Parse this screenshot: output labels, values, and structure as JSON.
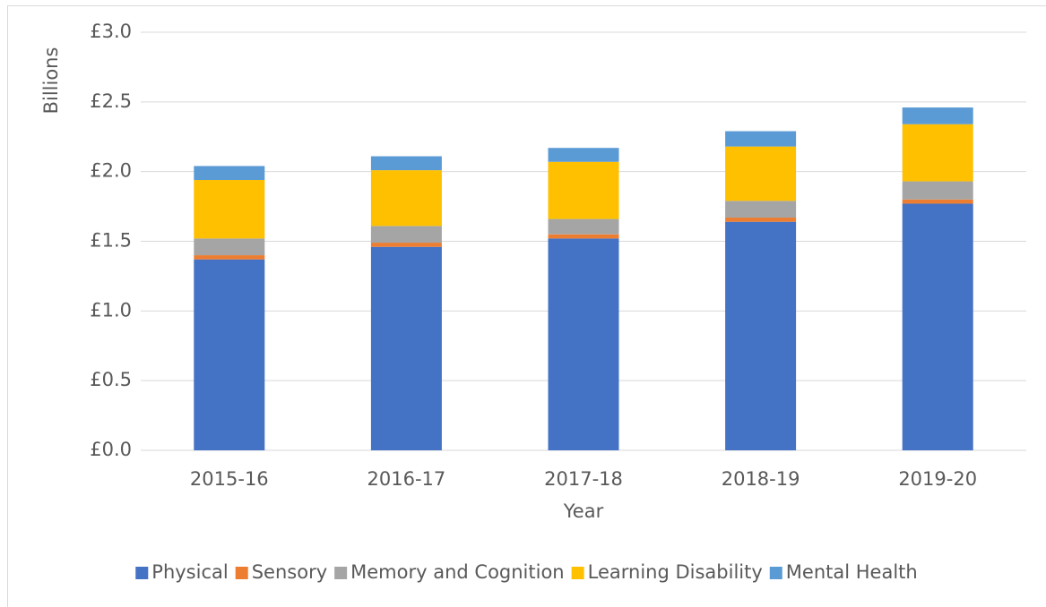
{
  "chart_data": {
    "type": "stacked_bar",
    "y_label": "Billions",
    "x_label": "Year",
    "categories": [
      "2015-16",
      "2016-17",
      "2017-18",
      "2018-19",
      "2019-20"
    ],
    "series": [
      {
        "name": "Physical",
        "color": "#4472c4",
        "values": [
          1.37,
          1.46,
          1.52,
          1.64,
          1.77
        ]
      },
      {
        "name": "Sensory",
        "color": "#ed7d31",
        "values": [
          0.03,
          0.03,
          0.03,
          0.03,
          0.03
        ]
      },
      {
        "name": "Memory and Cognition",
        "color": "#a5a5a5",
        "values": [
          0.12,
          0.12,
          0.11,
          0.12,
          0.13
        ]
      },
      {
        "name": "Learning Disability",
        "color": "#ffc000",
        "values": [
          0.42,
          0.4,
          0.41,
          0.39,
          0.41
        ]
      },
      {
        "name": "Mental Health",
        "color": "#5b9bd5",
        "values": [
          0.1,
          0.1,
          0.1,
          0.11,
          0.12
        ]
      }
    ],
    "ylim": [
      0,
      3
    ],
    "yticks": [
      {
        "value": 0,
        "label": "£0.0"
      },
      {
        "value": 0.5,
        "label": "£0.5"
      },
      {
        "value": 1,
        "label": "£1.0"
      },
      {
        "value": 1.5,
        "label": "£1.5"
      },
      {
        "value": 2,
        "label": "£2.0"
      },
      {
        "value": 2.5,
        "label": "£2.5"
      },
      {
        "value": 3,
        "label": "£3.0"
      }
    ],
    "grid": true,
    "legend": "bottom"
  }
}
